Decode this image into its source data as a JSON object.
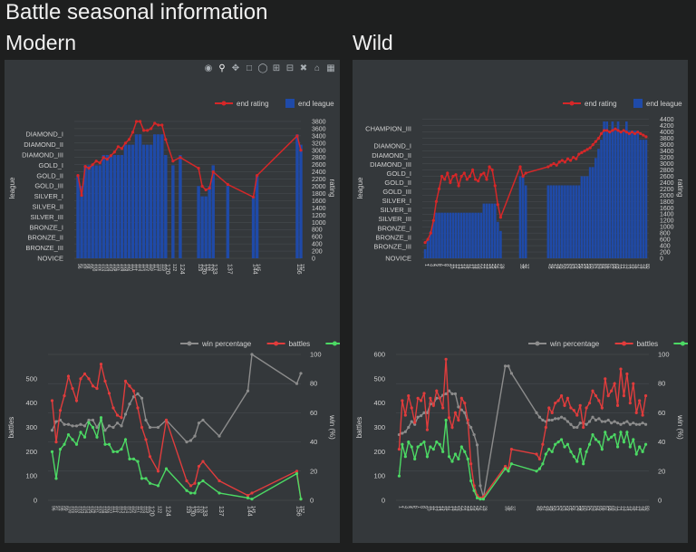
{
  "page": {
    "title": "Battle seasonal information"
  },
  "sections": {
    "modern": "Modern",
    "wild": "Wild"
  },
  "modebar": {
    "icons": [
      "camera-icon",
      "zoom-icon",
      "pan-icon",
      "box-select-icon",
      "lasso-icon",
      "zoom-in-icon",
      "zoom-out-icon",
      "autoscale-icon",
      "home-icon",
      "plotly-logo-icon"
    ]
  },
  "colors": {
    "rating": "#d62728",
    "league": "#1f4aa8",
    "winpct": "#8c8c8c",
    "battles": "#e03c3c",
    "wins": "#4cd964"
  },
  "chart_data": [
    {
      "id": "modern-rating",
      "type": "bar+line",
      "legend": [
        "end rating",
        "end league"
      ],
      "xlabel": "",
      "ylabel_left": "league",
      "ylabel_right": "rating",
      "league_ticks": [
        "NOVICE",
        "BRONZE_III",
        "BRONZE_II",
        "BRONZE_I",
        "SILVER_III",
        "SILVER_II",
        "SILVER_I",
        "GOLD_III",
        "GOLD_II",
        "GOLD_I",
        "DIAMOND_III",
        "DIAMOND_II",
        "DIAMOND_I"
      ],
      "league_tick_values": [
        0,
        1,
        2,
        3,
        4,
        5,
        6,
        7,
        8,
        9,
        10,
        11,
        12
      ],
      "rating_ticks": [
        0,
        200,
        400,
        600,
        800,
        1000,
        1200,
        1400,
        1600,
        1800,
        2000,
        2200,
        2400,
        2600,
        2800,
        3000,
        3200,
        3400,
        3600,
        3800
      ],
      "ylim_league": [
        0,
        13.6
      ],
      "ylim_rating": [
        0,
        3900
      ],
      "xlim": [
        95,
        157
      ],
      "x_tick_labels": [
        "120",
        "124",
        "130",
        "133",
        "137",
        "144",
        "147",
        "156"
      ],
      "seasons": [
        96,
        97,
        98,
        99,
        100,
        101,
        102,
        103,
        104,
        105,
        106,
        107,
        108,
        109,
        110,
        111,
        112,
        113,
        114,
        115,
        116,
        117,
        118,
        119,
        120,
        122,
        124,
        129,
        130,
        131,
        132,
        133,
        137,
        144,
        145,
        156,
        157
      ],
      "end_rating": [
        2300,
        1750,
        2550,
        2500,
        2600,
        2700,
        2650,
        2800,
        2750,
        2850,
        2950,
        3100,
        3050,
        3200,
        3300,
        3500,
        3800,
        3800,
        3550,
        3550,
        3600,
        3750,
        3700,
        3700,
        3300,
        2700,
        2800,
        2500,
        2000,
        1900,
        1950,
        2400,
        2050,
        1700,
        2300,
        3400,
        3000
      ],
      "end_league": [
        8,
        7,
        9,
        9,
        9,
        9,
        9,
        10,
        10,
        10,
        10,
        10,
        10,
        11,
        11,
        11,
        12,
        12,
        11,
        11,
        11,
        12,
        12,
        12,
        10,
        9,
        10,
        7,
        6,
        6,
        7,
        9,
        7,
        6,
        8,
        12,
        11
      ]
    },
    {
      "id": "wild-rating",
      "type": "bar+line",
      "legend": [
        "end rating",
        "end league"
      ],
      "xlabel": "",
      "ylabel_left": "league",
      "ylabel_right": "rating",
      "league_ticks": [
        "NOVICE",
        "BRONZE_III",
        "BRONZE_II",
        "BRONZE_I",
        "SILVER_III",
        "SILVER_II",
        "SILVER_I",
        "GOLD_III",
        "GOLD_II",
        "GOLD_I",
        "DIAMOND_III",
        "DIAMOND_II",
        "DIAMOND_I",
        "CHAMPION_III"
      ],
      "league_tick_values": [
        0,
        1.3,
        2.3,
        3.3,
        4.3,
        5.3,
        6.3,
        7.3,
        8.3,
        9.3,
        10.3,
        11.3,
        12.3,
        14.2
      ],
      "rating_ticks": [
        0,
        200,
        400,
        600,
        800,
        1000,
        1200,
        1400,
        1600,
        1800,
        2000,
        2200,
        2400,
        2600,
        2800,
        3000,
        3200,
        3400,
        3600,
        3800,
        4000,
        4200,
        4400
      ],
      "ylim_league": [
        0,
        15.4
      ],
      "ylim_rating": [
        0,
        4450
      ],
      "xlim": [
        0,
        81
      ],
      "x_tick_labels": [],
      "x_groups": [
        [
          1,
          28
        ],
        [
          35,
          37
        ],
        [
          45,
          80
        ]
      ],
      "segments": [
        {
          "end_rating": [
            500,
            600,
            800,
            1200,
            1800,
            2200,
            2600,
            2500,
            2700,
            2400,
            2600,
            2650,
            2300,
            2600,
            2700,
            2500,
            2600,
            2800,
            2500,
            2450,
            2650,
            2700,
            2500,
            2900,
            2800,
            2300,
            1700,
            1300
          ],
          "end_league": [
            1,
            2,
            3,
            4,
            5,
            5,
            5,
            5,
            5,
            5,
            5,
            5,
            5,
            5,
            5,
            5,
            5,
            5,
            5,
            5,
            5,
            6,
            6,
            6,
            6,
            6,
            4,
            3
          ]
        },
        {
          "end_rating": [
            2900,
            2600,
            2700
          ],
          "end_league": [
            9,
            9,
            8
          ]
        },
        {
          "end_rating": [
            2900,
            2950,
            3000,
            2950,
            3050,
            3100,
            3050,
            3150,
            3100,
            3200,
            3150,
            3300,
            3350,
            3400,
            3450,
            3500,
            3600,
            3700,
            3800,
            3950,
            4050,
            4050,
            4000,
            4050,
            4100,
            4050,
            4000,
            4050,
            4000,
            3950,
            4000,
            3950,
            4000,
            3950,
            3900,
            3850
          ],
          "end_league": [
            8,
            8,
            8,
            8,
            8,
            8,
            8,
            8,
            8,
            8,
            8,
            8,
            9,
            9,
            9,
            10,
            10,
            11,
            12,
            13,
            15,
            15,
            14,
            15,
            14,
            15,
            14,
            14,
            15,
            14,
            14,
            14,
            14,
            13,
            13,
            13
          ]
        }
      ]
    },
    {
      "id": "modern-battles",
      "type": "line",
      "legend": [
        "win percentage",
        "battles",
        "wins"
      ],
      "xlabel": "",
      "ylabel_left": "battles",
      "ylabel_right": "win (%)",
      "y_ticks_left": [
        0,
        100,
        200,
        300,
        400,
        500
      ],
      "y_ticks_right": [
        0,
        20,
        40,
        60,
        80,
        100
      ],
      "ylim_left": [
        0,
        600
      ],
      "ylim_right": [
        0,
        100
      ],
      "xlim": [
        95,
        157
      ],
      "x_tick_labels": [
        "120",
        "124",
        "130",
        "133",
        "137",
        "144",
        "147",
        "156"
      ],
      "seasons": [
        96,
        97,
        98,
        99,
        100,
        101,
        102,
        103,
        104,
        105,
        106,
        107,
        108,
        109,
        110,
        111,
        112,
        113,
        114,
        115,
        116,
        117,
        118,
        119,
        120,
        122,
        124,
        129,
        130,
        131,
        132,
        133,
        137,
        144,
        145,
        156,
        157
      ],
      "battles": [
        410,
        240,
        370,
        430,
        510,
        460,
        410,
        500,
        520,
        500,
        470,
        460,
        560,
        490,
        440,
        380,
        350,
        340,
        490,
        470,
        450,
        380,
        300,
        250,
        180,
        120,
        330,
        80,
        60,
        70,
        140,
        160,
        80,
        20,
        30,
        120,
        5
      ],
      "wins": [
        200,
        90,
        210,
        230,
        270,
        250,
        230,
        280,
        260,
        320,
        300,
        260,
        340,
        230,
        230,
        200,
        200,
        210,
        250,
        170,
        170,
        160,
        90,
        90,
        70,
        60,
        130,
        40,
        30,
        30,
        70,
        80,
        30,
        10,
        5,
        110,
        5
      ],
      "win_pct": [
        48,
        54,
        55,
        52,
        52,
        51,
        51,
        52,
        51,
        55,
        55,
        50,
        55,
        48,
        51,
        50,
        53,
        51,
        59,
        66,
        71,
        73,
        70,
        55,
        50,
        50,
        55,
        40,
        41,
        44,
        53,
        55,
        44,
        75,
        100,
        80,
        87
      ]
    },
    {
      "id": "wild-battles",
      "type": "line",
      "legend": [
        "win percentage",
        "battles",
        "wins"
      ],
      "xlabel": "",
      "ylabel_left": "battles",
      "ylabel_right": "win (%)",
      "y_ticks_left": [
        0,
        100,
        200,
        300,
        400,
        500,
        600
      ],
      "y_ticks_right": [
        0,
        20,
        40,
        60,
        80,
        100
      ],
      "ylim_left": [
        0,
        600
      ],
      "ylim_right": [
        0,
        100
      ],
      "xlim": [
        0,
        81
      ],
      "x_tick_labels": [],
      "x_groups": [
        [
          1,
          28
        ],
        [
          35,
          37
        ],
        [
          45,
          80
        ]
      ],
      "segments": [
        {
          "battles": [
            210,
            410,
            350,
            430,
            380,
            320,
            420,
            410,
            440,
            290,
            420,
            390,
            450,
            420,
            380,
            580,
            340,
            300,
            360,
            330,
            420,
            400,
            330,
            150,
            60,
            20,
            10,
            15
          ],
          "wins": [
            100,
            230,
            180,
            240,
            220,
            170,
            220,
            230,
            240,
            180,
            220,
            210,
            240,
            230,
            200,
            330,
            180,
            160,
            190,
            170,
            220,
            200,
            170,
            80,
            40,
            10,
            5,
            5
          ],
          "win_pct": [
            45,
            46,
            47,
            50,
            54,
            52,
            57,
            58,
            60,
            60,
            66,
            66,
            70,
            70,
            72,
            73,
            75,
            73,
            73,
            64,
            62,
            60,
            53,
            50,
            45,
            38,
            10,
            2
          ]
        },
        {
          "battles": [
            140,
            130,
            210
          ],
          "wins": [
            130,
            120,
            150
          ],
          "win_pct": [
            92,
            92,
            87
          ]
        },
        {
          "battles": [
            190,
            170,
            230,
            300,
            380,
            360,
            400,
            410,
            430,
            390,
            420,
            380,
            370,
            350,
            390,
            300,
            380,
            400,
            450,
            430,
            410,
            380,
            500,
            430,
            450,
            480,
            390,
            540,
            430,
            520,
            400,
            480,
            360,
            410,
            350,
            430
          ],
          "wins": [
            120,
            130,
            150,
            190,
            210,
            200,
            230,
            240,
            250,
            220,
            230,
            200,
            180,
            160,
            210,
            150,
            200,
            230,
            270,
            250,
            240,
            210,
            280,
            250,
            260,
            270,
            220,
            280,
            240,
            280,
            220,
            250,
            190,
            220,
            200,
            230
          ],
          "win_pct": [
            60,
            57,
            55,
            54,
            55,
            55,
            56,
            56,
            57,
            56,
            54,
            52,
            50,
            50,
            53,
            53,
            52,
            54,
            57,
            55,
            56,
            54,
            54,
            55,
            53,
            54,
            53,
            52,
            53,
            54,
            52,
            53,
            52,
            52,
            53,
            52
          ]
        }
      ]
    }
  ]
}
